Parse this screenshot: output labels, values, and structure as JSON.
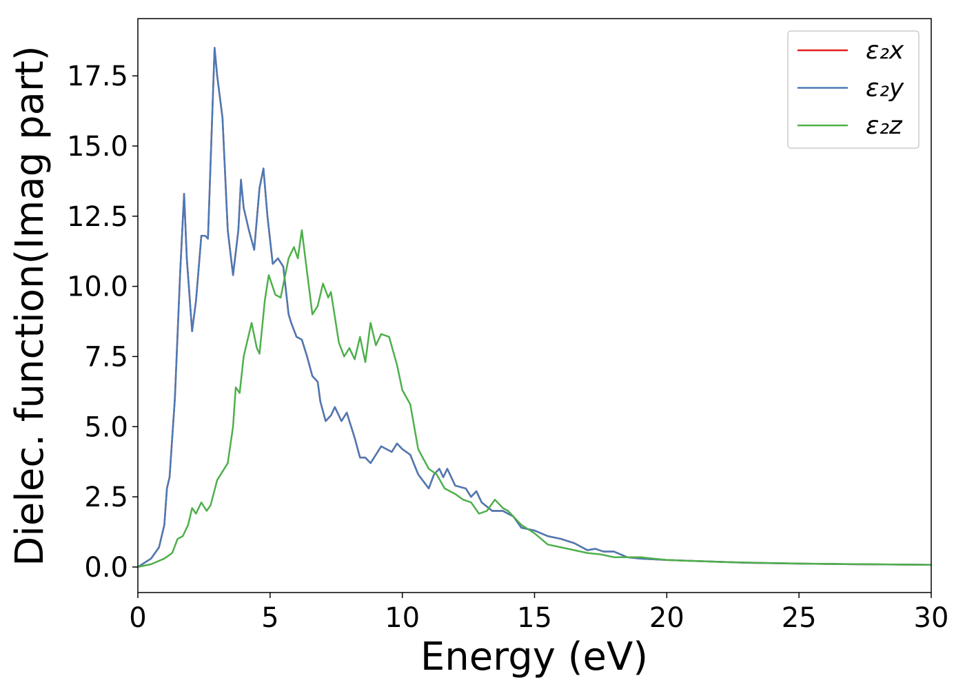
{
  "chart_data": {
    "type": "line",
    "xlabel": "Energy (eV)",
    "ylabel": "Dielec. function(Imag part)",
    "xlim": [
      0,
      30
    ],
    "xticks": [
      0,
      5,
      10,
      15,
      20,
      25,
      30
    ],
    "ylim": [
      -0.91,
      19.54
    ],
    "yticks": [
      {
        "value": 0,
        "label": "0.0"
      },
      2.5,
      {
        "value": 5,
        "label": "5.0"
      },
      7.5,
      {
        "value": 10,
        "label": "10.0"
      },
      12.5,
      {
        "value": 15,
        "label": "15.0"
      },
      17.5
    ],
    "legend": "upper right",
    "series": [
      {
        "name": "ε₂x",
        "color": "#e41a1c",
        "x": [
          0,
          0.5,
          0.8,
          1.0,
          1.1,
          1.2,
          1.4,
          1.6,
          1.75,
          1.85,
          2.05,
          2.2,
          2.4,
          2.55,
          2.65,
          2.9,
          3.0,
          3.2,
          3.4,
          3.6,
          3.8,
          3.9,
          4.0,
          4.2,
          4.4,
          4.6,
          4.75,
          4.9,
          5.1,
          5.3,
          5.5,
          5.7,
          5.8,
          6.0,
          6.2,
          6.4,
          6.6,
          6.8,
          6.9,
          7.1,
          7.3,
          7.45,
          7.7,
          7.9,
          8.0,
          8.2,
          8.4,
          8.6,
          8.8,
          9.0,
          9.2,
          9.6,
          9.8,
          10.0,
          10.3,
          10.6,
          11.0,
          11.2,
          11.4,
          11.55,
          11.7,
          12.0,
          12.4,
          12.6,
          12.8,
          13.0,
          13.4,
          13.8,
          14.2,
          14.5,
          15.0,
          15.5,
          16.0,
          16.5,
          17.0,
          17.3,
          17.6,
          18.0,
          18.5,
          19.0,
          20.0,
          21.5,
          23,
          25,
          27,
          30
        ],
        "values": [
          0,
          0.3,
          0.7,
          1.5,
          2.8,
          3.2,
          6.0,
          10.5,
          13.3,
          11.0,
          8.4,
          9.5,
          11.8,
          11.8,
          11.7,
          18.5,
          17.5,
          16.0,
          12.0,
          10.4,
          12.0,
          13.8,
          12.8,
          12.0,
          11.3,
          13.5,
          14.2,
          12.5,
          10.8,
          11.0,
          10.7,
          9.0,
          8.7,
          8.2,
          8.1,
          7.5,
          6.8,
          6.6,
          5.9,
          5.2,
          5.4,
          5.7,
          5.2,
          5.5,
          5.2,
          4.6,
          3.9,
          3.9,
          3.7,
          4.0,
          4.3,
          4.1,
          4.4,
          4.2,
          4.0,
          3.3,
          2.8,
          3.3,
          3.5,
          3.2,
          3.5,
          2.9,
          2.8,
          2.5,
          2.7,
          2.3,
          2.0,
          2.0,
          1.8,
          1.4,
          1.3,
          1.1,
          1.0,
          0.85,
          0.6,
          0.65,
          0.55,
          0.55,
          0.35,
          0.3,
          0.25,
          0.2,
          0.15,
          0.12,
          0.1,
          0.08
        ]
      },
      {
        "name": "ε₂y",
        "color": "#4a7ab5",
        "x": [
          0,
          0.5,
          0.8,
          1.0,
          1.1,
          1.2,
          1.4,
          1.6,
          1.75,
          1.85,
          2.05,
          2.2,
          2.4,
          2.55,
          2.65,
          2.9,
          3.0,
          3.2,
          3.4,
          3.6,
          3.8,
          3.9,
          4.0,
          4.2,
          4.4,
          4.6,
          4.75,
          4.9,
          5.1,
          5.3,
          5.5,
          5.7,
          5.8,
          6.0,
          6.2,
          6.4,
          6.6,
          6.8,
          6.9,
          7.1,
          7.3,
          7.45,
          7.7,
          7.9,
          8.0,
          8.2,
          8.4,
          8.6,
          8.8,
          9.0,
          9.2,
          9.6,
          9.8,
          10.0,
          10.3,
          10.6,
          11.0,
          11.2,
          11.4,
          11.55,
          11.7,
          12.0,
          12.4,
          12.6,
          12.8,
          13.0,
          13.4,
          13.8,
          14.2,
          14.5,
          15.0,
          15.5,
          16.0,
          16.5,
          17.0,
          17.3,
          17.6,
          18.0,
          18.5,
          19.0,
          20.0,
          21.5,
          23,
          25,
          27,
          30
        ],
        "values": [
          0,
          0.3,
          0.7,
          1.5,
          2.8,
          3.2,
          6.0,
          10.5,
          13.3,
          11.0,
          8.4,
          9.5,
          11.8,
          11.8,
          11.7,
          18.5,
          17.5,
          16.0,
          12.0,
          10.4,
          12.0,
          13.8,
          12.8,
          12.0,
          11.3,
          13.5,
          14.2,
          12.5,
          10.8,
          11.0,
          10.7,
          9.0,
          8.7,
          8.2,
          8.1,
          7.5,
          6.8,
          6.6,
          5.9,
          5.2,
          5.4,
          5.7,
          5.2,
          5.5,
          5.2,
          4.6,
          3.9,
          3.9,
          3.7,
          4.0,
          4.3,
          4.1,
          4.4,
          4.2,
          4.0,
          3.3,
          2.8,
          3.3,
          3.5,
          3.2,
          3.5,
          2.9,
          2.8,
          2.5,
          2.7,
          2.3,
          2.0,
          2.0,
          1.8,
          1.4,
          1.3,
          1.1,
          1.0,
          0.85,
          0.6,
          0.65,
          0.55,
          0.55,
          0.35,
          0.3,
          0.25,
          0.2,
          0.15,
          0.12,
          0.1,
          0.08
        ]
      },
      {
        "name": "ε₂z",
        "color": "#4daf4a",
        "x": [
          0,
          0.5,
          1.0,
          1.3,
          1.5,
          1.7,
          1.9,
          2.05,
          2.2,
          2.4,
          2.6,
          2.75,
          3.0,
          3.2,
          3.4,
          3.6,
          3.7,
          3.85,
          4.0,
          4.3,
          4.5,
          4.6,
          4.8,
          4.95,
          5.2,
          5.4,
          5.7,
          5.9,
          6.05,
          6.2,
          6.4,
          6.6,
          6.8,
          7.0,
          7.2,
          7.3,
          7.6,
          7.8,
          8.0,
          8.2,
          8.4,
          8.6,
          8.8,
          9.0,
          9.2,
          9.5,
          9.8,
          10.0,
          10.3,
          10.6,
          11.0,
          11.3,
          11.6,
          12.0,
          12.3,
          12.6,
          12.9,
          13.2,
          13.5,
          13.8,
          14.0,
          14.5,
          15.0,
          15.5,
          16.0,
          16.5,
          17.0,
          17.5,
          18.0,
          19.0,
          20.0,
          22.0,
          25,
          30
        ],
        "values": [
          0,
          0.1,
          0.3,
          0.5,
          1.0,
          1.1,
          1.5,
          2.1,
          1.9,
          2.3,
          2.0,
          2.2,
          3.1,
          3.4,
          3.7,
          5.0,
          6.4,
          6.2,
          7.5,
          8.7,
          7.8,
          7.6,
          9.5,
          10.4,
          9.7,
          9.6,
          11.0,
          11.4,
          11.0,
          12.0,
          10.5,
          9.0,
          9.3,
          10.1,
          9.6,
          9.8,
          8.0,
          7.5,
          7.8,
          7.4,
          8.2,
          7.3,
          8.7,
          7.9,
          8.3,
          8.2,
          7.2,
          6.3,
          5.8,
          4.2,
          3.5,
          3.3,
          2.8,
          2.6,
          2.4,
          2.3,
          1.9,
          2.0,
          2.4,
          2.1,
          2.0,
          1.5,
          1.2,
          0.8,
          0.7,
          0.6,
          0.5,
          0.45,
          0.35,
          0.35,
          0.25,
          0.18,
          0.12,
          0.08
        ]
      }
    ]
  }
}
